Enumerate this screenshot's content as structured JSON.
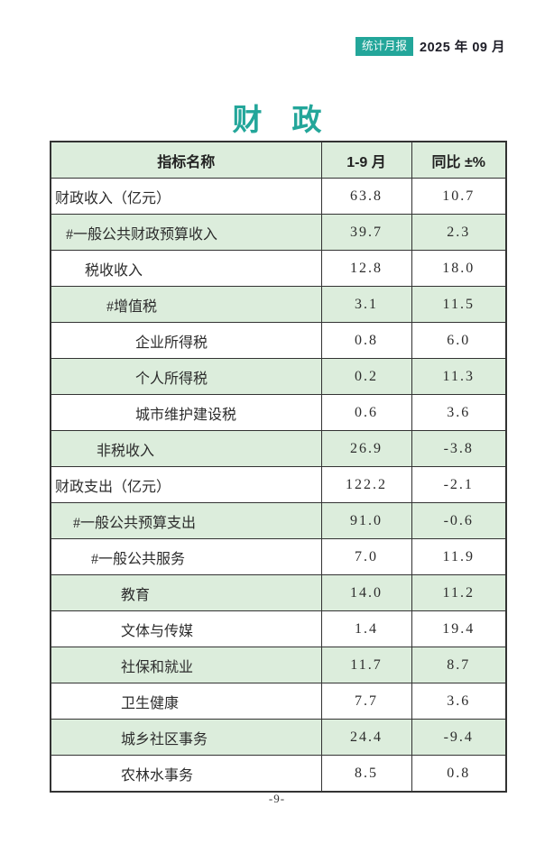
{
  "header": {
    "badge_label": "统计月报",
    "date": "2025 年 09 月"
  },
  "title": "财　政",
  "table": {
    "columns": [
      "指标名称",
      "1-9 月",
      "同比 ±%"
    ],
    "rows": [
      {
        "label": "财政收入（亿元）",
        "period": "63.8",
        "yoy": "10.7",
        "indent": 0,
        "shaded": false
      },
      {
        "label": "#一般公共财政预算收入",
        "period": "39.7",
        "yoy": "2.3",
        "indent": 12,
        "shaded": true
      },
      {
        "label": "税收收入",
        "period": "12.8",
        "yoy": "18.0",
        "indent": 33,
        "shaded": false
      },
      {
        "label": "#增值税",
        "period": "3.1",
        "yoy": "11.5",
        "indent": 57,
        "shaded": true
      },
      {
        "label": "企业所得税",
        "period": "0.8",
        "yoy": "6.0",
        "indent": 89,
        "shaded": false
      },
      {
        "label": "个人所得税",
        "period": "0.2",
        "yoy": "11.3",
        "indent": 89,
        "shaded": true
      },
      {
        "label": "城市维护建设税",
        "period": "0.6",
        "yoy": "3.6",
        "indent": 89,
        "shaded": false
      },
      {
        "label": "非税收入",
        "period": "26.9",
        "yoy": "-3.8",
        "indent": 46,
        "shaded": true
      },
      {
        "label": "财政支出（亿元）",
        "period": "122.2",
        "yoy": "-2.1",
        "indent": 0,
        "shaded": false
      },
      {
        "label": "#一般公共预算支出",
        "period": "91.0",
        "yoy": "-0.6",
        "indent": 20,
        "shaded": true
      },
      {
        "label": "#一般公共服务",
        "period": "7.0",
        "yoy": "11.9",
        "indent": 40,
        "shaded": false
      },
      {
        "label": "教育",
        "period": "14.0",
        "yoy": "11.2",
        "indent": 73,
        "shaded": true
      },
      {
        "label": "文体与传媒",
        "period": "1.4",
        "yoy": "19.4",
        "indent": 73,
        "shaded": false
      },
      {
        "label": "社保和就业",
        "period": "11.7",
        "yoy": "8.7",
        "indent": 73,
        "shaded": true
      },
      {
        "label": "卫生健康",
        "period": "7.7",
        "yoy": "3.6",
        "indent": 73,
        "shaded": false
      },
      {
        "label": "城乡社区事务",
        "period": "24.4",
        "yoy": "-9.4",
        "indent": 73,
        "shaded": true
      },
      {
        "label": "农林水事务",
        "period": "8.5",
        "yoy": "0.8",
        "indent": 73,
        "shaded": false
      }
    ]
  },
  "footer": {
    "page_number": "-9-"
  },
  "colors": {
    "accent_teal": "#23a69a",
    "shaded_row_green": "#dceddc",
    "table_border": "#333333",
    "date_text": "#1d1d27"
  }
}
